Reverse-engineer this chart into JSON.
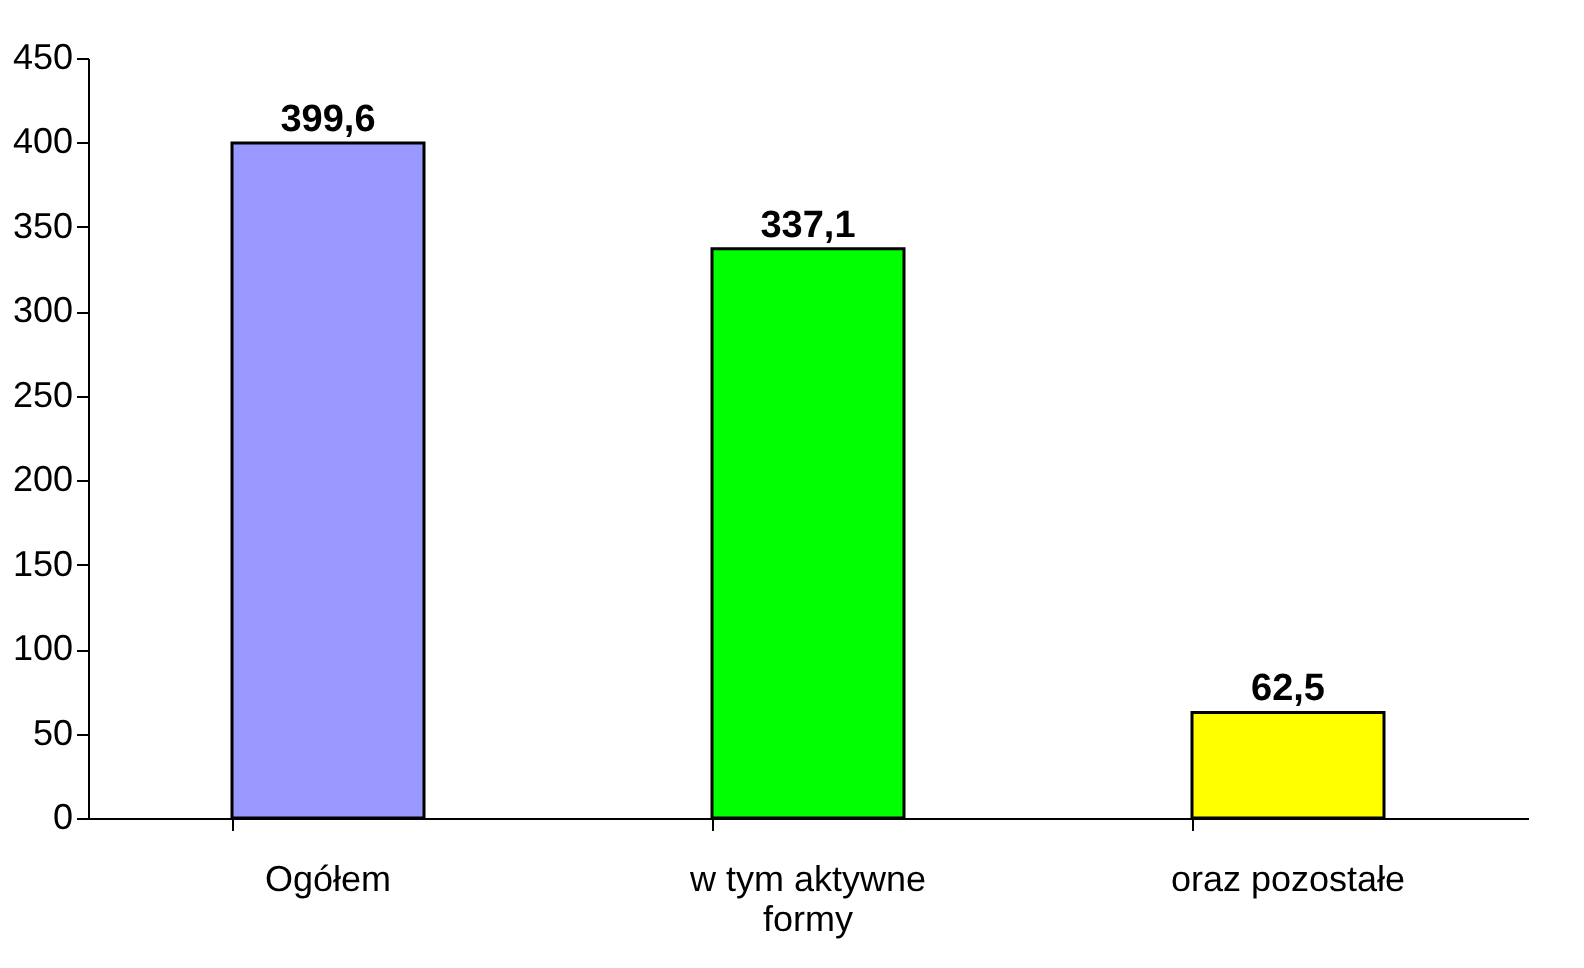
{
  "chart_data": {
    "type": "bar",
    "categories": [
      "Ogółem",
      "w tym aktywne formy",
      "oraz pozostałe"
    ],
    "values": [
      399.6,
      337.1,
      62.5
    ],
    "colors": [
      "#9999ff",
      "#00ff00",
      "#ffff00"
    ],
    "value_labels": [
      "399,6",
      "337,1",
      "62,5"
    ],
    "ylim": [
      0,
      450
    ],
    "yticks": [
      0,
      50,
      100,
      150,
      200,
      250,
      300,
      350,
      400,
      450
    ],
    "grid": false
  }
}
